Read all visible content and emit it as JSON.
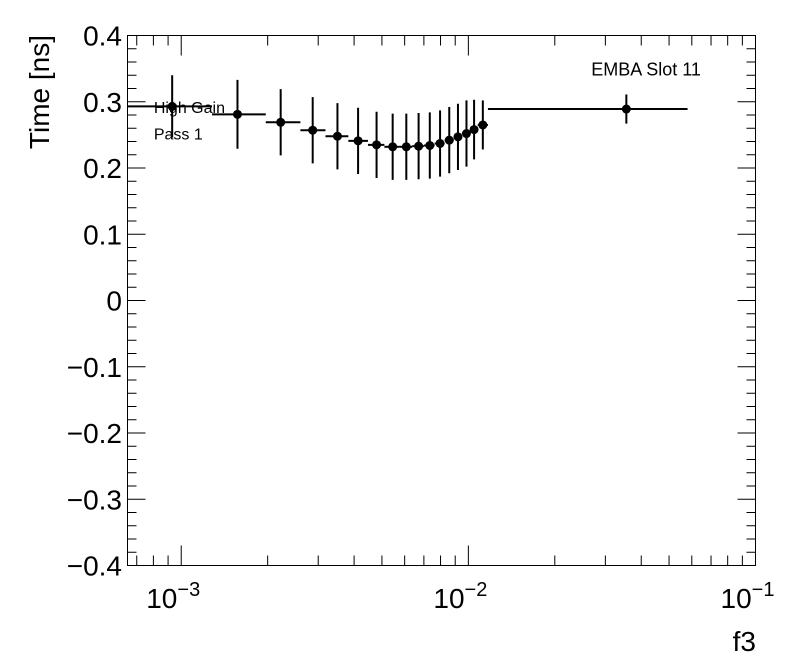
{
  "chart_data": {
    "type": "scatter",
    "title": "",
    "xlabel": "f3",
    "ylabel": "Time [ns]",
    "x_scale": "log",
    "xlim": [
      0.00065,
      0.1
    ],
    "ylim": [
      -0.4,
      0.4
    ],
    "y_ticks": [
      {
        "value": -0.4,
        "label": "−0.4"
      },
      {
        "value": -0.3,
        "label": "−0.3"
      },
      {
        "value": -0.2,
        "label": "−0.2"
      },
      {
        "value": -0.1,
        "label": "−0.1"
      },
      {
        "value": 0,
        "label": "0"
      },
      {
        "value": 0.1,
        "label": "0.1"
      },
      {
        "value": 0.2,
        "label": "0.2"
      },
      {
        "value": 0.3,
        "label": "0.3"
      },
      {
        "value": 0.4,
        "label": "0.4"
      }
    ],
    "x_ticks": [
      {
        "value": 0.001,
        "base": "10",
        "exp": "−3"
      },
      {
        "value": 0.01,
        "base": "10",
        "exp": "−2"
      },
      {
        "value": 0.1,
        "base": "10",
        "exp": "−1"
      }
    ],
    "grid": false,
    "legend": "none",
    "annotations": [
      {
        "text": "EMBA Slot 11",
        "x": 0.036,
        "y": 0.34
      },
      {
        "text": "High Gain",
        "x": 0.00092,
        "y": 0.283
      },
      {
        "text": "Pass 1",
        "x": 0.00092,
        "y": 0.243
      }
    ],
    "points": [
      {
        "x": 0.00093,
        "y": 0.293,
        "xlo": 0.00065,
        "xhi": 0.00128,
        "yerr": 0.047
      },
      {
        "x": 0.00157,
        "y": 0.281,
        "xlo": 0.00128,
        "xhi": 0.00197,
        "yerr": 0.052
      },
      {
        "x": 0.00222,
        "y": 0.269,
        "xlo": 0.00197,
        "xhi": 0.0026,
        "yerr": 0.05
      },
      {
        "x": 0.00287,
        "y": 0.257,
        "xlo": 0.0026,
        "xhi": 0.00318,
        "yerr": 0.05
      },
      {
        "x": 0.0035,
        "y": 0.248,
        "xlo": 0.00318,
        "xhi": 0.00382,
        "yerr": 0.05
      },
      {
        "x": 0.00413,
        "y": 0.241,
        "xlo": 0.00382,
        "xhi": 0.00447,
        "yerr": 0.05
      },
      {
        "x": 0.00479,
        "y": 0.235,
        "xlo": 0.00447,
        "xhi": 0.0051,
        "yerr": 0.05
      },
      {
        "x": 0.00545,
        "y": 0.232,
        "xlo": 0.0051,
        "xhi": 0.00575,
        "yerr": 0.05
      },
      {
        "x": 0.00608,
        "y": 0.232,
        "xlo": 0.00575,
        "xhi": 0.00637,
        "yerr": 0.05
      },
      {
        "x": 0.00671,
        "y": 0.233,
        "xlo": 0.00637,
        "xhi": 0.007,
        "yerr": 0.05
      },
      {
        "x": 0.00734,
        "y": 0.234,
        "xlo": 0.007,
        "xhi": 0.00763,
        "yerr": 0.05
      },
      {
        "x": 0.00797,
        "y": 0.237,
        "xlo": 0.00763,
        "xhi": 0.00827,
        "yerr": 0.05
      },
      {
        "x": 0.00858,
        "y": 0.242,
        "xlo": 0.00827,
        "xhi": 0.00889,
        "yerr": 0.05
      },
      {
        "x": 0.0092,
        "y": 0.247,
        "xlo": 0.00889,
        "xhi": 0.00952,
        "yerr": 0.05
      },
      {
        "x": 0.00985,
        "y": 0.252,
        "xlo": 0.00952,
        "xhi": 0.01015,
        "yerr": 0.05
      },
      {
        "x": 0.01047,
        "y": 0.258,
        "xlo": 0.01015,
        "xhi": 0.01078,
        "yerr": 0.045
      },
      {
        "x": 0.01123,
        "y": 0.265,
        "xlo": 0.01078,
        "xhi": 0.0117,
        "yerr": 0.037
      },
      {
        "x": 0.0355,
        "y": 0.289,
        "xlo": 0.0117,
        "xhi": 0.058,
        "yerr": 0.022
      }
    ]
  }
}
